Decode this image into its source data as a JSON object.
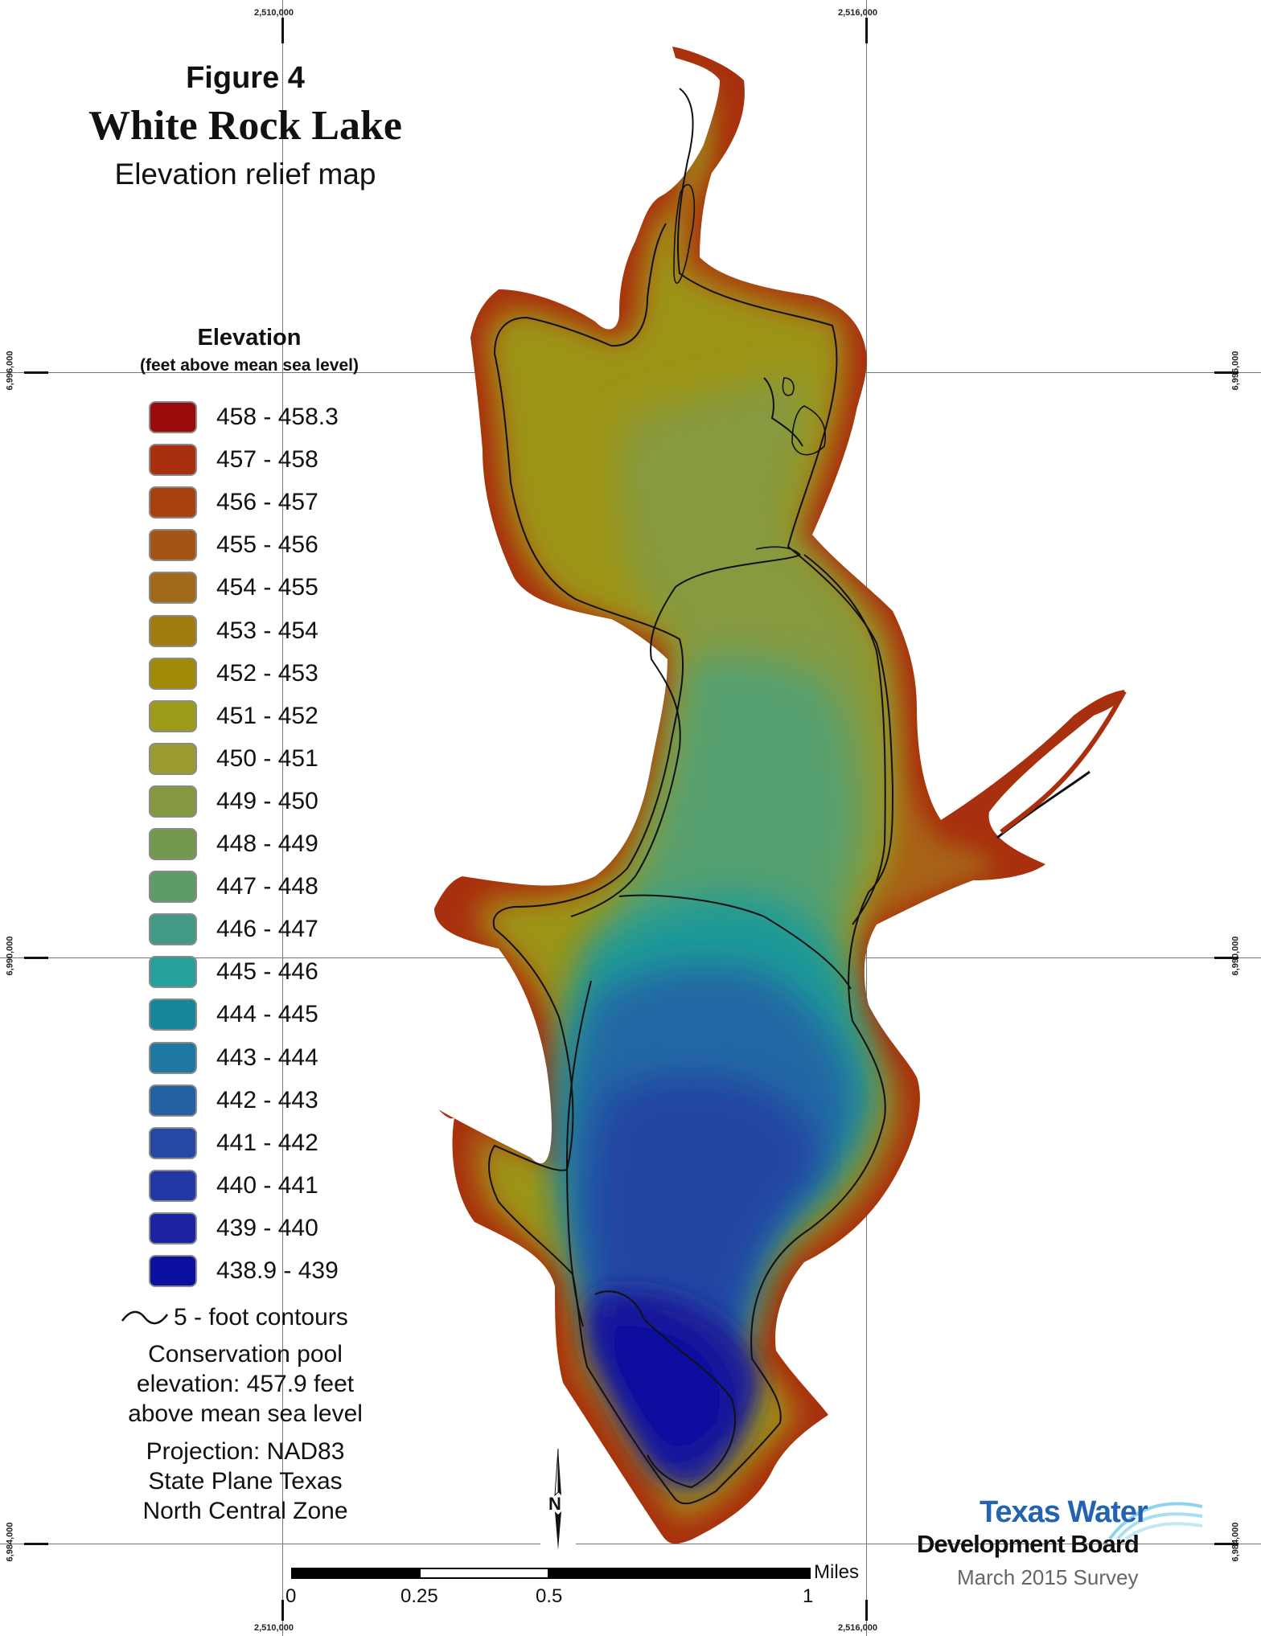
{
  "title": {
    "figure": "Figure 4",
    "lake": "White Rock Lake",
    "subtitle": "Elevation relief map"
  },
  "grid": {
    "easting_top": [
      "2,510,000",
      "2,516,000"
    ],
    "easting_bottom": [
      "2,510,000",
      "2,516,000"
    ],
    "northing_left": [
      "6,996,000",
      "6,990,000",
      "6,984,000"
    ],
    "northing_right": [
      "6,996,000",
      "6,990,000",
      "6,984,000"
    ]
  },
  "legend": {
    "title": "Elevation",
    "units": "(feet above mean sea level)",
    "classes": [
      {
        "label": "458 - 458.3",
        "color": "#9a0a0a"
      },
      {
        "label": "457 - 458",
        "color": "#a8300e"
      },
      {
        "label": "456 - 457",
        "color": "#a84010"
      },
      {
        "label": "455 - 456",
        "color": "#a55416"
      },
      {
        "label": "454 - 455",
        "color": "#a06a1a"
      },
      {
        "label": "453 - 454",
        "color": "#a07c10"
      },
      {
        "label": "452 - 453",
        "color": "#a08a08"
      },
      {
        "label": "451 - 452",
        "color": "#9e9a1a"
      },
      {
        "label": "450 - 451",
        "color": "#9a9c30"
      },
      {
        "label": "449 - 450",
        "color": "#859a40"
      },
      {
        "label": "448 - 449",
        "color": "#72994e"
      },
      {
        "label": "447 - 448",
        "color": "#5e9b66"
      },
      {
        "label": "446 - 447",
        "color": "#429a84"
      },
      {
        "label": "445 - 446",
        "color": "#26a09a"
      },
      {
        "label": "444 - 445",
        "color": "#14889a"
      },
      {
        "label": "443 - 444",
        "color": "#1e78a0"
      },
      {
        "label": "442 - 443",
        "color": "#2260a2"
      },
      {
        "label": "441 - 442",
        "color": "#2648a2"
      },
      {
        "label": "440 - 441",
        "color": "#2238a4"
      },
      {
        "label": "439 - 440",
        "color": "#1c22a0"
      },
      {
        "label": "438.9 - 439",
        "color": "#0c10a0"
      }
    ],
    "contour_label": "5 - foot contours"
  },
  "notes": {
    "pool": [
      "Conservation pool",
      "elevation: 457.9 feet",
      "above mean sea level"
    ],
    "projection": [
      "Projection: NAD83",
      "State Plane Texas",
      "North Central Zone"
    ]
  },
  "north_arrow": {
    "label": "N"
  },
  "scale_bar": {
    "unit": "Miles",
    "ticks": [
      "0",
      "0.25",
      "0.5",
      "1"
    ]
  },
  "credits": {
    "agency_line1": "Texas Water",
    "agency_line2": "Development Board",
    "survey": "March 2015 Survey"
  }
}
